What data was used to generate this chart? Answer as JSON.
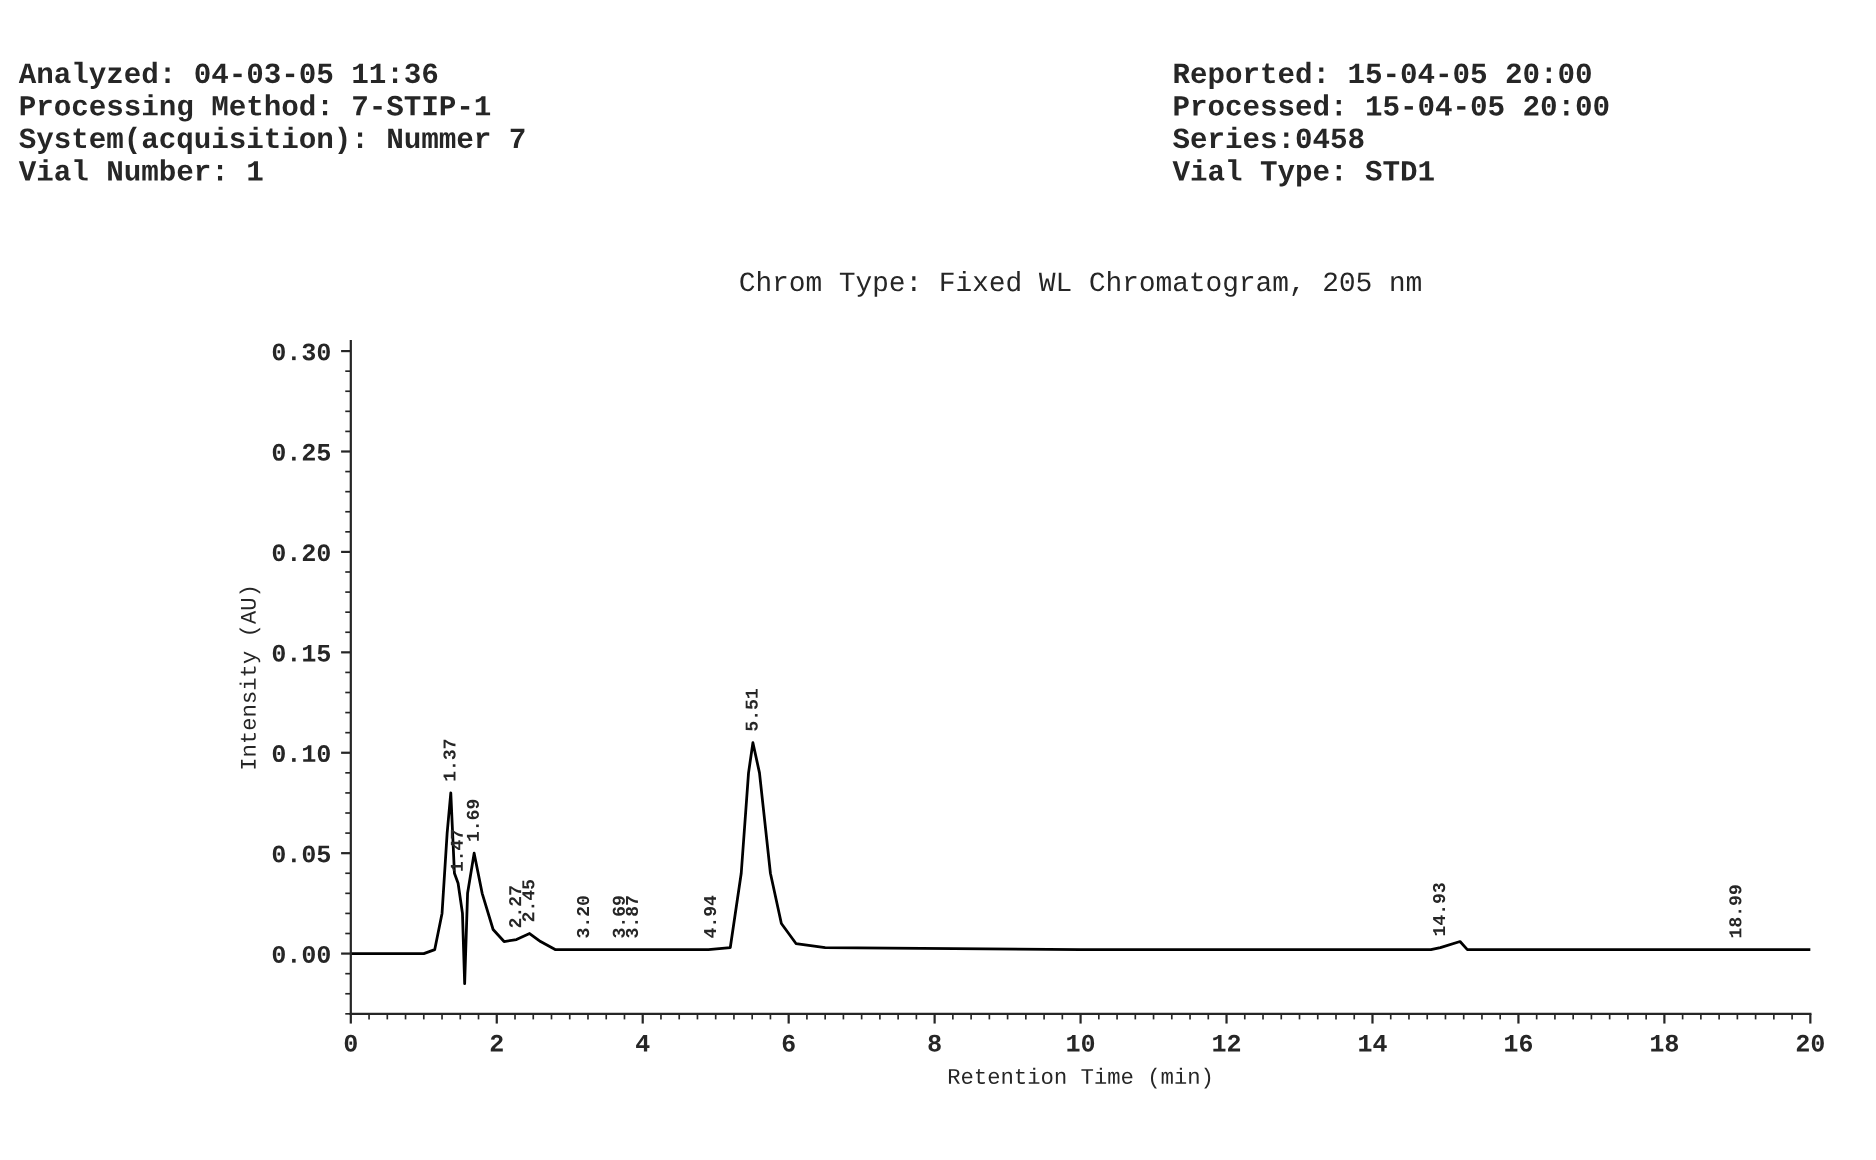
{
  "chart_data": {
    "type": "line",
    "title": "Chrom Type: Fixed WL Chromatogram, 205 nm",
    "xlabel": "Retention Time (min)",
    "ylabel": "Intensity (AU)",
    "annotations": [
      "Analyzed: 04-03-05 11:36",
      "Processing Method: 7-STIP-1",
      "System(acquisition): Nummer 7",
      "Vial Number: 1",
      "Reported: 15-04-05 20:00",
      "Processed: 15-04-05 20:00",
      "Series:0458",
      "Vial Type: STD1",
      {
        "text": "1.37",
        "x": 1.37,
        "y": 0.08
      },
      {
        "text": "1.47",
        "x": 1.47,
        "y": 0.035
      },
      {
        "text": "1.69",
        "x": 1.69,
        "y": 0.05
      },
      {
        "text": "2.27",
        "x": 2.27,
        "y": 0.007
      },
      {
        "text": "2.45",
        "x": 2.45,
        "y": 0.01
      },
      {
        "text": "3.20",
        "x": 3.2,
        "y": 0.002
      },
      {
        "text": "3.69",
        "x": 3.69,
        "y": 0.002
      },
      {
        "text": "3.87",
        "x": 3.87,
        "y": 0.002
      },
      {
        "text": "4.94",
        "x": 4.94,
        "y": 0.002
      },
      {
        "text": "5.51",
        "x": 5.51,
        "y": 0.105
      },
      {
        "text": "14.93",
        "x": 14.93,
        "y": 0.003
      },
      {
        "text": "18.99",
        "x": 18.99,
        "y": 0.002
      }
    ],
    "x": [
      0,
      1.0,
      1.15,
      1.25,
      1.32,
      1.37,
      1.42,
      1.47,
      1.53,
      1.56,
      1.6,
      1.69,
      1.8,
      1.95,
      2.1,
      2.27,
      2.45,
      2.6,
      2.8,
      3.0,
      4.9,
      5.2,
      5.35,
      5.45,
      5.51,
      5.6,
      5.75,
      5.9,
      6.1,
      6.5,
      10,
      14.8,
      14.93,
      15.2,
      15.3,
      20
    ],
    "series": [
      {
        "color": "#000000",
        "values": [
          0,
          0,
          0.002,
          0.02,
          0.06,
          0.08,
          0.04,
          0.035,
          0.02,
          -0.015,
          0.03,
          0.05,
          0.03,
          0.012,
          0.006,
          0.007,
          0.01,
          0.006,
          0.002,
          0.002,
          0.002,
          0.003,
          0.04,
          0.09,
          0.105,
          0.09,
          0.04,
          0.015,
          0.005,
          0.003,
          0.002,
          0.002,
          0.003,
          0.006,
          0.002,
          0.002
        ]
      }
    ],
    "xlim": [
      0,
      20
    ],
    "xticks": [
      0,
      2,
      4,
      6,
      8,
      10,
      12,
      14,
      16,
      18,
      20
    ],
    "ylim": [
      -0.03,
      0.305
    ],
    "yticks": [
      {
        "value": 0,
        "label": "0.00"
      },
      {
        "value": 0.05,
        "label": "0.05"
      },
      {
        "value": 0.1,
        "label": "0.10"
      },
      {
        "value": 0.15,
        "label": "0.15"
      },
      {
        "value": 0.2,
        "label": "0.20"
      },
      {
        "value": 0.25,
        "label": "0.25"
      },
      {
        "value": 0.3,
        "label": "0.30"
      }
    ],
    "grid": false,
    "legend": false,
    "marker": "none",
    "line_style": "solid"
  }
}
